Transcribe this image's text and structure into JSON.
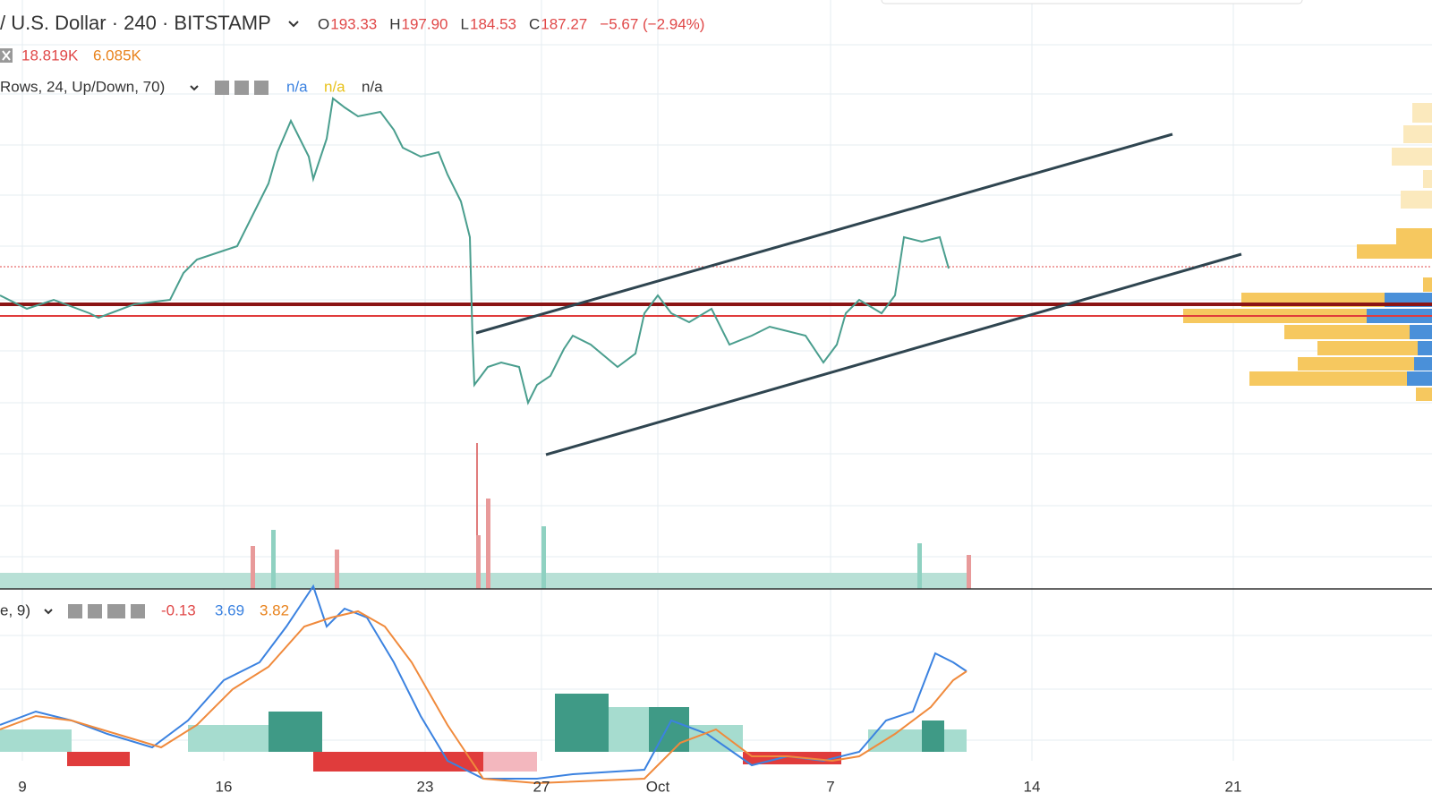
{
  "header": {
    "symbol": "/ U.S. Dollar · 240 · BITSTAMP",
    "ohlc": [
      {
        "label": "O",
        "value": "193.33"
      },
      {
        "label": "H",
        "value": "197.90"
      },
      {
        "label": "L",
        "value": "184.53"
      },
      {
        "label": "C",
        "value": "187.27"
      }
    ],
    "change": "−5.67 (−2.94%)"
  },
  "volume": {
    "values": [
      "18.819K",
      "6.085K"
    ]
  },
  "volume_profile": {
    "label": "Rows, 24, Up/Down, 70)",
    "values": [
      "n/a",
      "n/a",
      "n/a"
    ]
  },
  "macd": {
    "label": "e, 9)",
    "values": [
      "-0.13",
      "3.69",
      "3.82"
    ]
  },
  "x_axis": {
    "labels": [
      "9",
      "16",
      "23",
      "27",
      "Oct",
      "7",
      "14",
      "21"
    ]
  }
}
